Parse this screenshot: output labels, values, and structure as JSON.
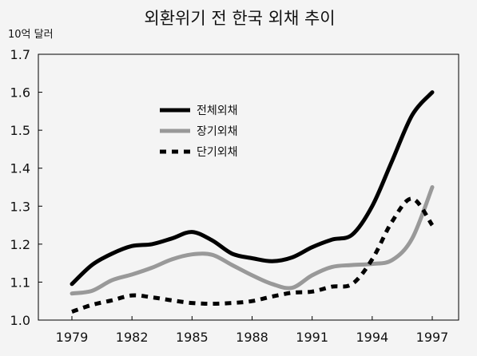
{
  "chart_data": {
    "type": "line",
    "title": "외환위기 전 한국 외채 추이",
    "ylabel": "10억 달러",
    "xlabel": "",
    "x": [
      1979,
      1980,
      1981,
      1982,
      1983,
      1984,
      1985,
      1986,
      1987,
      1988,
      1989,
      1990,
      1991,
      1992,
      1993,
      1994,
      1995,
      1996,
      1997
    ],
    "x_ticks": [
      "1979",
      "1982",
      "1985",
      "1988",
      "1991",
      "1994",
      "1997"
    ],
    "y_ticks": [
      "1.0",
      "1.1",
      "1.2",
      "1.3",
      "1.4",
      "1.5",
      "1.6",
      "1.7"
    ],
    "xlim": [
      1979,
      1997
    ],
    "ylim": [
      1.0,
      1.7
    ],
    "grid": false,
    "legend_position": "upper-left inside plot",
    "series": [
      {
        "name": "전체외채",
        "color": "#000000",
        "style": "solid",
        "values": [
          1.095,
          1.145,
          1.175,
          1.195,
          1.2,
          1.215,
          1.232,
          1.21,
          1.175,
          1.163,
          1.155,
          1.165,
          1.192,
          1.212,
          1.225,
          1.3,
          1.42,
          1.54,
          1.6
        ]
      },
      {
        "name": "장기외채",
        "color": "#999999",
        "style": "solid",
        "values": [
          1.07,
          1.077,
          1.105,
          1.12,
          1.138,
          1.16,
          1.173,
          1.172,
          1.145,
          1.118,
          1.095,
          1.085,
          1.118,
          1.14,
          1.145,
          1.148,
          1.158,
          1.215,
          1.35
        ]
      },
      {
        "name": "단기외채",
        "color": "#000000",
        "style": "dashed",
        "values": [
          1.022,
          1.04,
          1.052,
          1.065,
          1.06,
          1.052,
          1.045,
          1.043,
          1.045,
          1.05,
          1.062,
          1.072,
          1.075,
          1.088,
          1.095,
          1.16,
          1.26,
          1.32,
          1.25
        ]
      }
    ]
  }
}
